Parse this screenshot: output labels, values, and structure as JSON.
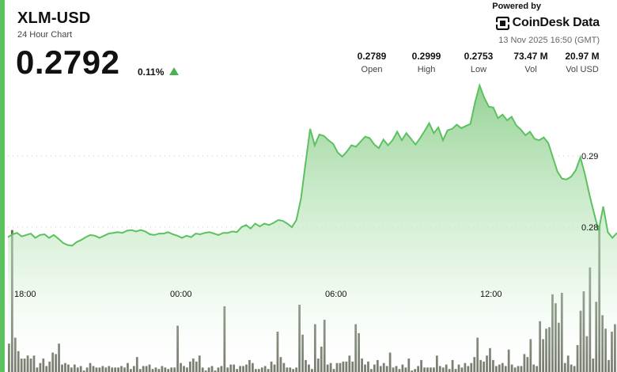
{
  "header": {
    "symbol": "XLM-USD",
    "subtitle": "24 Hour Chart",
    "price": "0.2792",
    "change_pct": "0.11%",
    "change_direction": "up",
    "powered_by": "Powered by",
    "brand": "CoinDesk Data",
    "timestamp": "13 Nov 2025 16:50 (GMT)"
  },
  "stats": [
    {
      "value": "0.2789",
      "label": "Open"
    },
    {
      "value": "0.2999",
      "label": "High"
    },
    {
      "value": "0.2753",
      "label": "Low"
    },
    {
      "value": "73.47 M",
      "label": "Vol"
    },
    {
      "value": "20.97 M",
      "label": "Vol USD"
    }
  ],
  "colors": {
    "accent": "#5cc15f",
    "line": "#5cc15f",
    "area_top": "#8fd08f",
    "volume_bar": "#5e6656",
    "price_up": "#4caf50"
  },
  "chart_data": {
    "type": "area",
    "x_tick_labels": [
      "18:00",
      "00:00",
      "06:00",
      "12:00"
    ],
    "y_tick_labels": [
      "0.29",
      "0.28"
    ],
    "ylim": [
      0.2719,
      0.3007
    ],
    "grid": "dotted",
    "price_series": [
      0.2786,
      0.279,
      0.2792,
      0.2787,
      0.2789,
      0.2791,
      0.2785,
      0.2789,
      0.279,
      0.2785,
      0.2789,
      0.2784,
      0.2778,
      0.2775,
      0.2774,
      0.2779,
      0.2782,
      0.2786,
      0.2789,
      0.2788,
      0.2785,
      0.2788,
      0.2791,
      0.2792,
      0.2793,
      0.2792,
      0.2795,
      0.2796,
      0.2794,
      0.2796,
      0.2794,
      0.279,
      0.2789,
      0.2791,
      0.2791,
      0.2793,
      0.279,
      0.2788,
      0.2785,
      0.2788,
      0.2786,
      0.2791,
      0.279,
      0.2792,
      0.2793,
      0.2791,
      0.2789,
      0.2792,
      0.2792,
      0.2794,
      0.2793,
      0.28,
      0.2803,
      0.2798,
      0.2805,
      0.2801,
      0.2805,
      0.2803,
      0.2806,
      0.281,
      0.2809,
      0.2805,
      0.28,
      0.281,
      0.284,
      0.289,
      0.2938,
      0.2915,
      0.293,
      0.2928,
      0.2922,
      0.2917,
      0.2905,
      0.2899,
      0.2906,
      0.2915,
      0.2913,
      0.292,
      0.2927,
      0.2925,
      0.2916,
      0.2911,
      0.2923,
      0.2915,
      0.2922,
      0.2934,
      0.2922,
      0.2932,
      0.2924,
      0.2916,
      0.2925,
      0.2935,
      0.2946,
      0.2932,
      0.294,
      0.2922,
      0.2936,
      0.2938,
      0.2944,
      0.2939,
      0.2942,
      0.2945,
      0.2975,
      0.2999,
      0.2982,
      0.2969,
      0.2968,
      0.2953,
      0.2958,
      0.295,
      0.2955,
      0.2943,
      0.2937,
      0.2929,
      0.2934,
      0.2924,
      0.2922,
      0.2926,
      0.2918,
      0.2898,
      0.2878,
      0.2868,
      0.2867,
      0.2871,
      0.288,
      0.2898,
      0.2874,
      0.2845,
      0.2819,
      0.2795,
      0.2829,
      0.2793,
      0.2785,
      0.2792
    ],
    "volume_series": [
      19,
      95,
      23,
      14,
      9,
      9,
      11,
      9,
      11,
      3,
      6,
      9,
      4,
      7,
      13,
      12,
      19,
      5,
      6,
      5,
      3,
      5,
      3,
      4,
      1,
      3,
      6,
      4,
      3,
      3,
      4,
      3,
      4,
      3,
      3,
      3,
      4,
      3,
      6,
      2,
      4,
      10,
      2,
      4,
      4,
      5,
      2,
      3,
      2,
      4,
      3,
      2,
      3,
      3,
      31,
      6,
      4,
      3,
      7,
      9,
      7,
      11,
      3,
      1,
      3,
      4,
      1,
      3,
      4,
      44,
      3,
      5,
      5,
      2,
      4,
      4,
      5,
      8,
      6,
      2,
      2,
      3,
      4,
      2,
      7,
      5,
      27,
      10,
      6,
      3,
      3,
      2,
      3,
      45,
      25,
      8,
      5,
      2,
      32,
      9,
      17,
      35,
      5,
      6,
      2,
      6,
      6,
      7,
      7,
      11,
      7,
      32,
      26,
      9,
      5,
      7,
      2,
      5,
      8,
      4,
      6,
      4,
      13,
      3,
      4,
      2,
      5,
      3,
      9,
      1,
      2,
      4,
      8,
      3,
      3,
      3,
      3,
      11,
      4,
      3,
      5,
      2,
      8,
      2,
      5,
      3,
      6,
      4,
      6,
      10,
      23,
      8,
      7,
      11,
      16,
      8,
      4,
      5,
      6,
      4,
      15,
      5,
      3,
      4,
      4,
      12,
      10,
      22,
      5,
      4,
      34,
      22,
      29,
      30,
      52,
      46,
      33,
      53,
      6,
      11,
      5,
      4,
      18,
      41,
      54,
      24,
      70,
      9,
      47,
      98,
      38,
      29,
      8,
      27,
      32
    ]
  }
}
